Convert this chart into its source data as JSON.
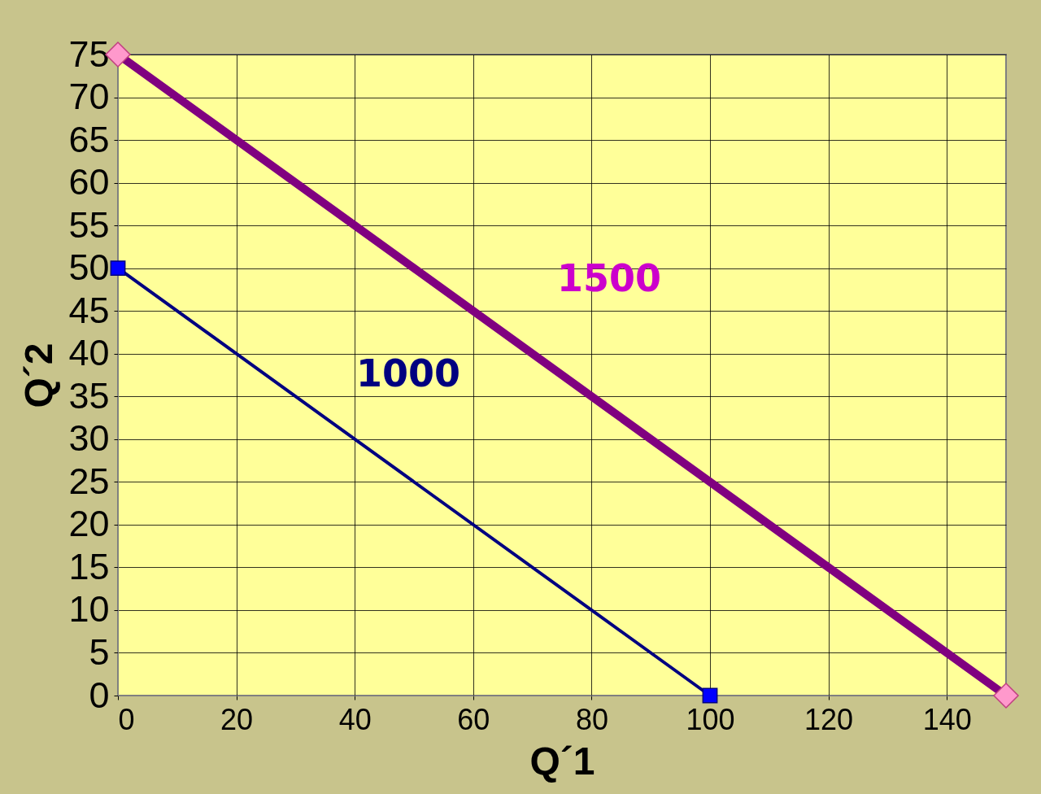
{
  "chart_data": {
    "type": "line",
    "xlabel": "Q´1",
    "ylabel": "Q´2",
    "xlim": [
      0,
      150
    ],
    "ylim": [
      0,
      75
    ],
    "xticks": [
      0,
      20,
      40,
      60,
      80,
      100,
      120,
      140
    ],
    "yticks": [
      0,
      5,
      10,
      15,
      20,
      25,
      30,
      35,
      40,
      45,
      50,
      55,
      60,
      65,
      70,
      75
    ],
    "grid": true,
    "line_style": "solid",
    "series": [
      {
        "name": "1000",
        "color": "#000080",
        "marker": "square",
        "x": [
          0,
          100
        ],
        "values": [
          50,
          0
        ]
      },
      {
        "name": "1500",
        "color": "#800080",
        "marker": "diamond",
        "x": [
          0,
          150
        ],
        "values": [
          75,
          0
        ]
      }
    ]
  }
}
